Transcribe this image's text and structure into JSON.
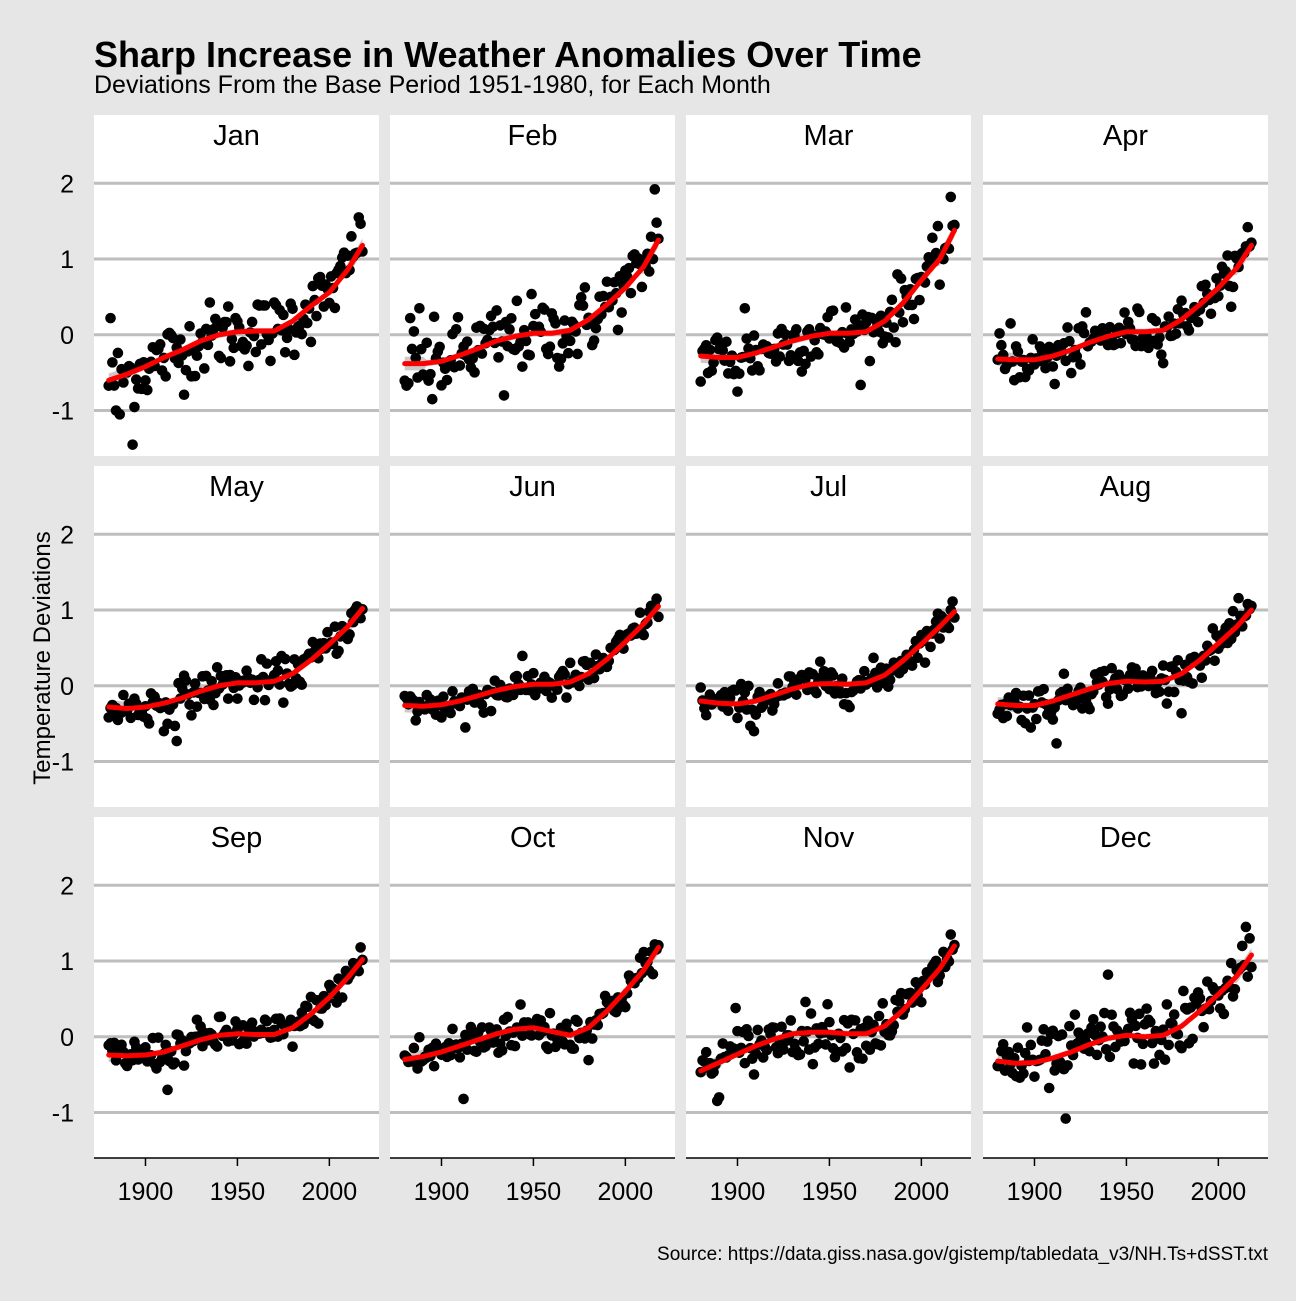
{
  "chart_data": {
    "type": "scatter",
    "title": "Sharp Increase in Weather Anomalies Over Time",
    "subtitle": "Deviations From the Base Period 1951-1980, for Each Month",
    "ylabel": "Temperature Deviations",
    "xlabel": "",
    "caption": "Source: https://data.giss.nasa.gov/gistemp/tabledata_v3/NH.Ts+dSST.txt",
    "xlim": [
      1872,
      2027
    ],
    "ylim": [
      -1.6,
      2.4
    ],
    "x_ticks": [
      1900,
      1950,
      2000
    ],
    "y_ticks": [
      -1,
      0,
      1,
      2
    ],
    "x_tick_labels": [
      "1900",
      "1950",
      "2000"
    ],
    "y_tick_labels": [
      "-1",
      "0",
      "1",
      "2"
    ],
    "grid": "horizontal major lines",
    "layout": "facets 3 rows x 4 columns",
    "point_color": "#000000",
    "smooth_color": "#ff0000",
    "band_color": "#bdbdbd",
    "panel_color": "#ffffff",
    "year_range": [
      1880,
      2018
    ],
    "panels": [
      {
        "name": "Jan",
        "smooth": [
          [
            1880,
            -0.6
          ],
          [
            1890,
            -0.52
          ],
          [
            1900,
            -0.42
          ],
          [
            1910,
            -0.3
          ],
          [
            1920,
            -0.2
          ],
          [
            1930,
            -0.08
          ],
          [
            1940,
            0.0
          ],
          [
            1950,
            0.04
          ],
          [
            1960,
            0.05
          ],
          [
            1970,
            0.05
          ],
          [
            1980,
            0.18
          ],
          [
            1990,
            0.38
          ],
          [
            2000,
            0.56
          ],
          [
            2010,
            0.86
          ],
          [
            2018,
            1.18
          ]
        ],
        "extremes": [
          [
            1893,
            -1.45
          ],
          [
            1884,
            -1.0
          ],
          [
            1886,
            -1.05
          ],
          [
            1881,
            0.22
          ],
          [
            2016,
            1.55
          ],
          [
            2012,
            1.3
          ],
          [
            2018,
            1.1
          ]
        ]
      },
      {
        "name": "Feb",
        "smooth": [
          [
            1880,
            -0.38
          ],
          [
            1890,
            -0.38
          ],
          [
            1900,
            -0.35
          ],
          [
            1910,
            -0.27
          ],
          [
            1920,
            -0.18
          ],
          [
            1930,
            -0.08
          ],
          [
            1940,
            -0.02
          ],
          [
            1950,
            0.02
          ],
          [
            1960,
            0.02
          ],
          [
            1970,
            0.06
          ],
          [
            1980,
            0.2
          ],
          [
            1990,
            0.4
          ],
          [
            2000,
            0.62
          ],
          [
            2010,
            0.9
          ],
          [
            2018,
            1.25
          ]
        ],
        "extremes": [
          [
            2016,
            1.92
          ],
          [
            2017,
            1.48
          ],
          [
            1895,
            -0.85
          ],
          [
            1934,
            -0.8
          ],
          [
            1883,
            0.22
          ],
          [
            1888,
            0.35
          ]
        ]
      },
      {
        "name": "Mar",
        "smooth": [
          [
            1880,
            -0.28
          ],
          [
            1890,
            -0.3
          ],
          [
            1900,
            -0.3
          ],
          [
            1910,
            -0.24
          ],
          [
            1920,
            -0.16
          ],
          [
            1930,
            -0.08
          ],
          [
            1940,
            -0.02
          ],
          [
            1950,
            0.02
          ],
          [
            1960,
            0.02
          ],
          [
            1970,
            0.04
          ],
          [
            1980,
            0.18
          ],
          [
            1990,
            0.42
          ],
          [
            2000,
            0.72
          ],
          [
            2010,
            1.0
          ],
          [
            2018,
            1.38
          ]
        ],
        "extremes": [
          [
            2016,
            1.82
          ],
          [
            2018,
            1.45
          ],
          [
            1900,
            -0.75
          ],
          [
            1904,
            0.35
          ]
        ]
      },
      {
        "name": "Apr",
        "smooth": [
          [
            1880,
            -0.32
          ],
          [
            1890,
            -0.33
          ],
          [
            1900,
            -0.33
          ],
          [
            1910,
            -0.28
          ],
          [
            1920,
            -0.2
          ],
          [
            1930,
            -0.1
          ],
          [
            1940,
            -0.02
          ],
          [
            1950,
            0.04
          ],
          [
            1960,
            0.04
          ],
          [
            1970,
            0.06
          ],
          [
            1980,
            0.2
          ],
          [
            1990,
            0.4
          ],
          [
            2000,
            0.62
          ],
          [
            2010,
            0.88
          ],
          [
            2018,
            1.18
          ]
        ],
        "extremes": [
          [
            2016,
            1.42
          ],
          [
            1911,
            -0.65
          ],
          [
            1887,
            0.15
          ]
        ]
      },
      {
        "name": "May",
        "smooth": [
          [
            1880,
            -0.28
          ],
          [
            1890,
            -0.3
          ],
          [
            1900,
            -0.28
          ],
          [
            1910,
            -0.23
          ],
          [
            1920,
            -0.16
          ],
          [
            1930,
            -0.07
          ],
          [
            1940,
            0.0
          ],
          [
            1950,
            0.04
          ],
          [
            1960,
            0.04
          ],
          [
            1970,
            0.06
          ],
          [
            1980,
            0.16
          ],
          [
            1990,
            0.34
          ],
          [
            2000,
            0.55
          ],
          [
            2010,
            0.78
          ],
          [
            2018,
            1.02
          ]
        ],
        "extremes": [
          [
            1917,
            -0.73
          ],
          [
            1910,
            -0.6
          ],
          [
            2016,
            1.0
          ]
        ]
      },
      {
        "name": "Jun",
        "smooth": [
          [
            1880,
            -0.26
          ],
          [
            1890,
            -0.27
          ],
          [
            1900,
            -0.25
          ],
          [
            1910,
            -0.2
          ],
          [
            1920,
            -0.13
          ],
          [
            1930,
            -0.06
          ],
          [
            1940,
            -0.01
          ],
          [
            1950,
            0.02
          ],
          [
            1960,
            0.02
          ],
          [
            1970,
            0.05
          ],
          [
            1980,
            0.16
          ],
          [
            1990,
            0.35
          ],
          [
            2000,
            0.58
          ],
          [
            2010,
            0.82
          ],
          [
            2018,
            1.05
          ]
        ],
        "extremes": [
          [
            1913,
            -0.55
          ],
          [
            2017,
            1.15
          ]
        ]
      },
      {
        "name": "Jul",
        "smooth": [
          [
            1880,
            -0.2
          ],
          [
            1890,
            -0.23
          ],
          [
            1900,
            -0.24
          ],
          [
            1910,
            -0.2
          ],
          [
            1920,
            -0.12
          ],
          [
            1930,
            -0.04
          ],
          [
            1940,
            0.02
          ],
          [
            1950,
            0.03
          ],
          [
            1960,
            0.02
          ],
          [
            1970,
            0.04
          ],
          [
            1980,
            0.14
          ],
          [
            1990,
            0.33
          ],
          [
            2000,
            0.55
          ],
          [
            2010,
            0.78
          ],
          [
            2018,
            0.98
          ]
        ],
        "extremes": [
          [
            1909,
            -0.6
          ],
          [
            2016,
            1.0
          ]
        ]
      },
      {
        "name": "Aug",
        "smooth": [
          [
            1880,
            -0.24
          ],
          [
            1890,
            -0.26
          ],
          [
            1900,
            -0.26
          ],
          [
            1910,
            -0.2
          ],
          [
            1920,
            -0.12
          ],
          [
            1930,
            -0.04
          ],
          [
            1940,
            0.03
          ],
          [
            1950,
            0.06
          ],
          [
            1960,
            0.05
          ],
          [
            1970,
            0.06
          ],
          [
            1980,
            0.16
          ],
          [
            1990,
            0.34
          ],
          [
            2000,
            0.56
          ],
          [
            2010,
            0.78
          ],
          [
            2018,
            1.0
          ]
        ],
        "extremes": [
          [
            1912,
            -0.76
          ],
          [
            2016,
            1.08
          ]
        ]
      },
      {
        "name": "Sep",
        "smooth": [
          [
            1880,
            -0.24
          ],
          [
            1890,
            -0.25
          ],
          [
            1900,
            -0.24
          ],
          [
            1910,
            -0.2
          ],
          [
            1920,
            -0.12
          ],
          [
            1930,
            -0.04
          ],
          [
            1940,
            0.02
          ],
          [
            1950,
            0.04
          ],
          [
            1960,
            0.03
          ],
          [
            1970,
            0.03
          ],
          [
            1980,
            0.12
          ],
          [
            1990,
            0.3
          ],
          [
            2000,
            0.52
          ],
          [
            2010,
            0.78
          ],
          [
            2018,
            1.02
          ]
        ],
        "extremes": [
          [
            1912,
            -0.7
          ],
          [
            2017,
            1.18
          ]
        ]
      },
      {
        "name": "Oct",
        "smooth": [
          [
            1880,
            -0.3
          ],
          [
            1890,
            -0.26
          ],
          [
            1900,
            -0.2
          ],
          [
            1910,
            -0.12
          ],
          [
            1920,
            -0.04
          ],
          [
            1930,
            0.04
          ],
          [
            1940,
            0.1
          ],
          [
            1950,
            0.12
          ],
          [
            1960,
            0.07
          ],
          [
            1970,
            0.02
          ],
          [
            1980,
            0.12
          ],
          [
            1990,
            0.34
          ],
          [
            2000,
            0.6
          ],
          [
            2010,
            0.88
          ],
          [
            2018,
            1.18
          ]
        ],
        "extremes": [
          [
            1912,
            -0.82
          ],
          [
            2016,
            1.22
          ]
        ]
      },
      {
        "name": "Nov",
        "smooth": [
          [
            1880,
            -0.45
          ],
          [
            1890,
            -0.34
          ],
          [
            1900,
            -0.23
          ],
          [
            1910,
            -0.12
          ],
          [
            1920,
            -0.03
          ],
          [
            1930,
            0.04
          ],
          [
            1940,
            0.06
          ],
          [
            1950,
            0.06
          ],
          [
            1960,
            0.04
          ],
          [
            1970,
            0.04
          ],
          [
            1980,
            0.14
          ],
          [
            1990,
            0.35
          ],
          [
            2000,
            0.62
          ],
          [
            2010,
            0.9
          ],
          [
            2018,
            1.2
          ]
        ],
        "extremes": [
          [
            1890,
            -0.8
          ],
          [
            1899,
            0.38
          ],
          [
            2016,
            1.35
          ]
        ]
      },
      {
        "name": "Dec",
        "smooth": [
          [
            1880,
            -0.32
          ],
          [
            1890,
            -0.35
          ],
          [
            1900,
            -0.34
          ],
          [
            1910,
            -0.28
          ],
          [
            1920,
            -0.2
          ],
          [
            1930,
            -0.1
          ],
          [
            1940,
            -0.02
          ],
          [
            1950,
            0.02
          ],
          [
            1960,
            0.0
          ],
          [
            1970,
            0.02
          ],
          [
            1980,
            0.14
          ],
          [
            1990,
            0.34
          ],
          [
            2000,
            0.56
          ],
          [
            2010,
            0.8
          ],
          [
            2018,
            1.08
          ]
        ],
        "extremes": [
          [
            1917,
            -1.08
          ],
          [
            1940,
            0.82
          ],
          [
            2015,
            1.45
          ],
          [
            2017,
            1.3
          ]
        ]
      }
    ]
  }
}
